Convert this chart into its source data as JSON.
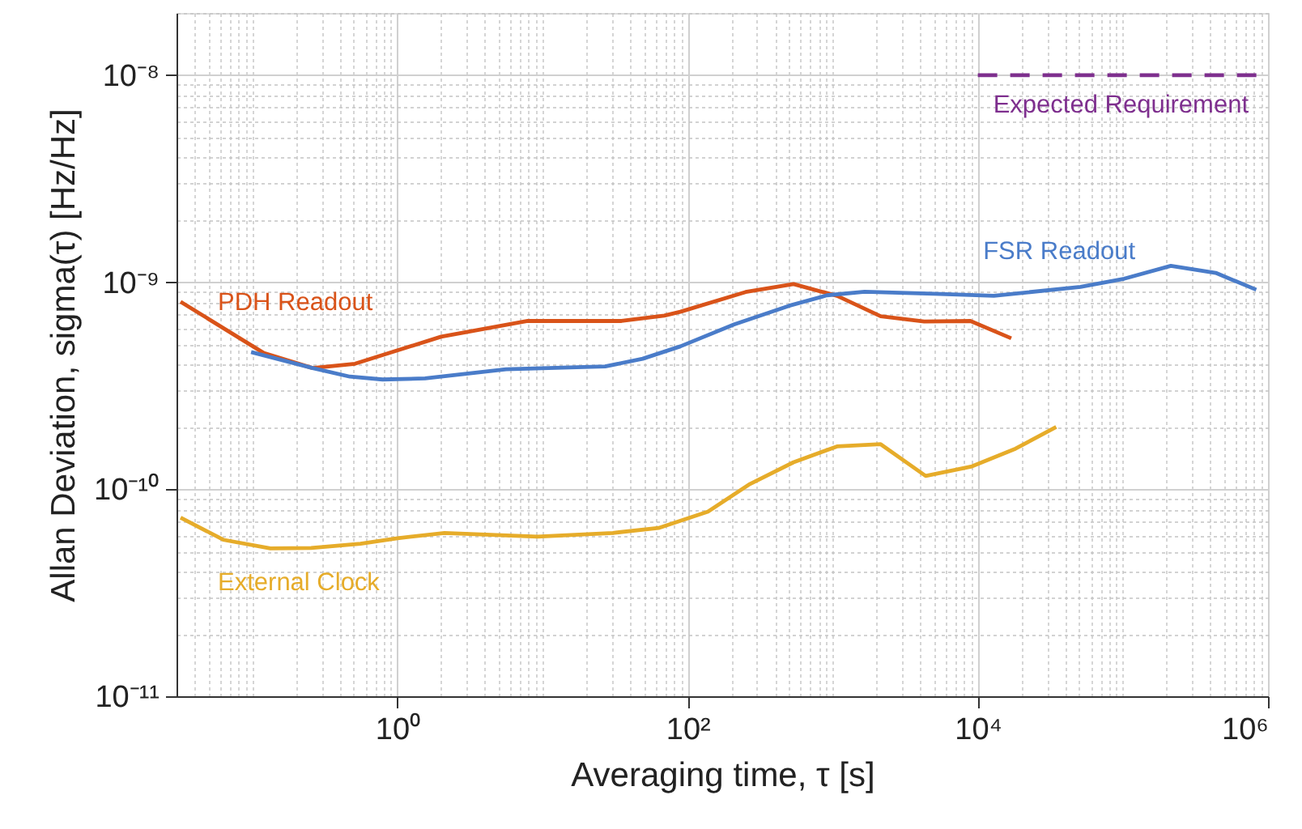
{
  "chart_data": {
    "type": "line",
    "xlabel": "Averaging time, τ [s]",
    "ylabel": "Allan Deviation, sigma(τ) [Hz/Hz]",
    "log": "xy",
    "grid": true,
    "line_style": "solid",
    "marker": "none",
    "xlim": [
      0.03,
      1000000
    ],
    "ylim": [
      1e-11,
      2e-08
    ],
    "xticks": [
      {
        "value": 0.03,
        "label": null
      },
      {
        "value": 0.04,
        "label": null
      },
      {
        "value": 0.05,
        "label": null
      },
      {
        "value": 0.06,
        "label": null
      },
      {
        "value": 0.07,
        "label": null
      },
      {
        "value": 0.08,
        "label": null
      },
      {
        "value": 0.09,
        "label": null
      },
      {
        "value": 0.1,
        "label": null
      },
      {
        "value": 0.2,
        "label": null
      },
      {
        "value": 0.3,
        "label": null
      },
      {
        "value": 0.4,
        "label": null
      },
      {
        "value": 0.5,
        "label": null
      },
      {
        "value": 0.6,
        "label": null
      },
      {
        "value": 0.7,
        "label": null
      },
      {
        "value": 0.8,
        "label": null
      },
      {
        "value": 0.9,
        "label": null
      },
      {
        "value": 1,
        "label": "10⁰"
      },
      {
        "value": 2,
        "label": null
      },
      {
        "value": 3,
        "label": null
      },
      {
        "value": 4,
        "label": null
      },
      {
        "value": 5,
        "label": null
      },
      {
        "value": 6,
        "label": null
      },
      {
        "value": 7,
        "label": null
      },
      {
        "value": 8,
        "label": null
      },
      {
        "value": 9,
        "label": null
      },
      {
        "value": 10,
        "label": null
      },
      {
        "value": 20,
        "label": null
      },
      {
        "value": 30,
        "label": null
      },
      {
        "value": 40,
        "label": null
      },
      {
        "value": 50,
        "label": null
      },
      {
        "value": 60,
        "label": null
      },
      {
        "value": 70,
        "label": null
      },
      {
        "value": 80,
        "label": null
      },
      {
        "value": 90,
        "label": null
      },
      {
        "value": 100,
        "label": "10²"
      },
      {
        "value": 200,
        "label": null
      },
      {
        "value": 300,
        "label": null
      },
      {
        "value": 400,
        "label": null
      },
      {
        "value": 500,
        "label": null
      },
      {
        "value": 600,
        "label": null
      },
      {
        "value": 700,
        "label": null
      },
      {
        "value": 800,
        "label": null
      },
      {
        "value": 900,
        "label": null
      },
      {
        "value": 1000,
        "label": null
      },
      {
        "value": 2000,
        "label": null
      },
      {
        "value": 3000,
        "label": null
      },
      {
        "value": 4000,
        "label": null
      },
      {
        "value": 5000,
        "label": null
      },
      {
        "value": 6000,
        "label": null
      },
      {
        "value": 7000,
        "label": null
      },
      {
        "value": 8000,
        "label": null
      },
      {
        "value": 9000,
        "label": null
      },
      {
        "value": 10000,
        "label": "10⁴"
      },
      {
        "value": 20000,
        "label": null
      },
      {
        "value": 30000,
        "label": null
      },
      {
        "value": 40000,
        "label": null
      },
      {
        "value": 50000,
        "label": null
      },
      {
        "value": 60000,
        "label": null
      },
      {
        "value": 70000,
        "label": null
      },
      {
        "value": 80000,
        "label": null
      },
      {
        "value": 90000,
        "label": null
      },
      {
        "value": 100000,
        "label": null
      },
      {
        "value": 200000,
        "label": null
      },
      {
        "value": 300000,
        "label": null
      },
      {
        "value": 400000,
        "label": null
      },
      {
        "value": 500000,
        "label": null
      },
      {
        "value": 600000,
        "label": null
      },
      {
        "value": 700000,
        "label": null
      },
      {
        "value": 800000,
        "label": null
      },
      {
        "value": 900000,
        "label": null
      },
      {
        "value": 1000000,
        "label": "10⁶"
      }
    ],
    "yticks": [
      {
        "value": 1e-11,
        "label": "10⁻¹¹"
      },
      {
        "value": 2e-11,
        "label": null
      },
      {
        "value": 3e-11,
        "label": null
      },
      {
        "value": 4e-11,
        "label": null
      },
      {
        "value": 5e-11,
        "label": null
      },
      {
        "value": 6e-11,
        "label": null
      },
      {
        "value": 7e-11,
        "label": null
      },
      {
        "value": 8e-11,
        "label": null
      },
      {
        "value": 9e-11,
        "label": null
      },
      {
        "value": 1e-10,
        "label": "10⁻¹⁰"
      },
      {
        "value": 2e-10,
        "label": null
      },
      {
        "value": 3e-10,
        "label": null
      },
      {
        "value": 4e-10,
        "label": null
      },
      {
        "value": 5e-10,
        "label": null
      },
      {
        "value": 6e-10,
        "label": null
      },
      {
        "value": 7e-10,
        "label": null
      },
      {
        "value": 8e-10,
        "label": null
      },
      {
        "value": 9e-10,
        "label": null
      },
      {
        "value": 1e-09,
        "label": "10⁻⁹"
      },
      {
        "value": 2e-09,
        "label": null
      },
      {
        "value": 3e-09,
        "label": null
      },
      {
        "value": 4e-09,
        "label": null
      },
      {
        "value": 5e-09,
        "label": null
      },
      {
        "value": 6e-09,
        "label": null
      },
      {
        "value": 7e-09,
        "label": null
      },
      {
        "value": 8e-09,
        "label": null
      },
      {
        "value": 9e-09,
        "label": null
      },
      {
        "value": 1e-08,
        "label": "10⁻⁸"
      },
      {
        "value": 2e-08,
        "label": null
      }
    ],
    "series": [
      {
        "name": "PDH Readout",
        "color": "#d95319",
        "x": [
          0.032,
          0.12,
          0.26,
          0.51,
          2.0,
          7.9,
          35,
          69,
          89,
          251,
          537,
          1070,
          2140,
          4270,
          8900,
          17000
        ],
        "values": [
          8.05e-10,
          4.55e-10,
          3.85e-10,
          4.04e-10,
          5.46e-10,
          6.5e-10,
          6.5e-10,
          6.9e-10,
          7.2e-10,
          8.97e-10,
          9.8e-10,
          8.6e-10,
          6.85e-10,
          6.46e-10,
          6.5e-10,
          5.36e-10
        ]
      },
      {
        "name": "FSR Readout",
        "color": "#4a7cc9",
        "x": [
          0.098,
          0.26,
          0.47,
          0.79,
          1.55,
          5.6,
          27,
          49,
          89,
          209,
          501,
          912,
          1660,
          5010,
          12900,
          51000,
          102000,
          214000,
          436000,
          830000
        ],
        "values": [
          4.6e-10,
          3.85e-10,
          3.5e-10,
          3.39e-10,
          3.43e-10,
          3.8e-10,
          3.92e-10,
          4.27e-10,
          4.9e-10,
          6.25e-10,
          7.7e-10,
          8.65e-10,
          9e-10,
          8.8e-10,
          8.6e-10,
          9.5e-10,
          1.04e-09,
          1.2e-09,
          1.11e-09,
          9.2e-10
        ]
      },
      {
        "name": "External Clock",
        "color": "#e6ac2a",
        "x": [
          0.032,
          0.063,
          0.133,
          0.254,
          0.556,
          1.0,
          2.11,
          9.2,
          30.5,
          63,
          138,
          269,
          537,
          1070,
          2140,
          4370,
          9120,
          18200,
          34700
        ],
        "values": [
          7.3e-11,
          5.7e-11,
          5.18e-11,
          5.2e-11,
          5.45e-11,
          5.8e-11,
          6.15e-11,
          5.9e-11,
          6.15e-11,
          6.5e-11,
          7.8e-11,
          1.06e-10,
          1.35e-10,
          1.61e-10,
          1.65e-10,
          1.16e-10,
          1.29e-10,
          1.57e-10,
          2e-10
        ]
      },
      {
        "name": "Expected Requirement",
        "color": "#7e2f8e",
        "line_style": "dashed",
        "x": [
          10000,
          1000000
        ],
        "values": [
          1e-08,
          1e-08
        ]
      }
    ]
  }
}
